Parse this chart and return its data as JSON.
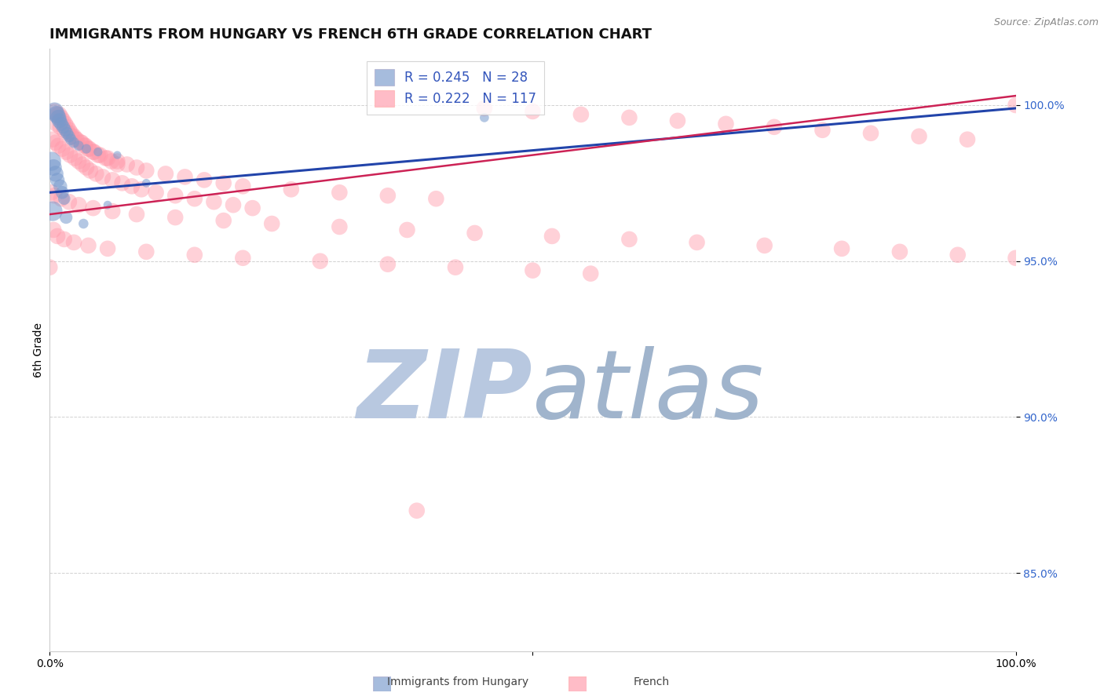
{
  "title": "IMMIGRANTS FROM HUNGARY VS FRENCH 6TH GRADE CORRELATION CHART",
  "source_text": "Source: ZipAtlas.com",
  "ylabel": "6th Grade",
  "xlim": [
    0.0,
    1.0
  ],
  "ylim": [
    0.825,
    1.018
  ],
  "yticks": [
    0.85,
    0.9,
    0.95,
    1.0
  ],
  "ytick_labels": [
    "85.0%",
    "90.0%",
    "95.0%",
    "100.0%"
  ],
  "xticks": [
    0.0,
    0.5,
    1.0
  ],
  "xtick_labels": [
    "0.0%",
    "",
    "100.0%"
  ],
  "blue_R": 0.245,
  "blue_N": 28,
  "pink_R": 0.222,
  "pink_N": 117,
  "legend_label_blue": "Immigrants from Hungary",
  "legend_label_pink": "French",
  "blue_color": "#7799cc",
  "pink_color": "#ff99aa",
  "blue_line_color": "#2244aa",
  "pink_line_color": "#cc2255",
  "watermark_zip_color": "#b8c8e0",
  "watermark_atlas_color": "#a0b4cc",
  "title_fontsize": 13,
  "tick_fontsize": 10,
  "source_fontsize": 9,
  "blue_x": [
    0.005,
    0.007,
    0.009,
    0.01,
    0.012,
    0.014,
    0.016,
    0.018,
    0.02,
    0.022,
    0.025,
    0.03,
    0.038,
    0.05,
    0.07,
    0.002,
    0.004,
    0.006,
    0.008,
    0.011,
    0.013,
    0.015,
    0.06,
    0.1,
    0.45,
    0.003,
    0.017,
    0.035
  ],
  "blue_y": [
    0.998,
    0.997,
    0.996,
    0.995,
    0.994,
    0.993,
    0.992,
    0.991,
    0.99,
    0.989,
    0.988,
    0.987,
    0.986,
    0.985,
    0.984,
    0.982,
    0.98,
    0.978,
    0.976,
    0.974,
    0.972,
    0.97,
    0.968,
    0.975,
    0.996,
    0.966,
    0.964,
    0.962
  ],
  "blue_sizes": [
    500,
    450,
    380,
    350,
    300,
    280,
    260,
    240,
    220,
    200,
    180,
    160,
    140,
    120,
    100,
    550,
    420,
    390,
    320,
    290,
    260,
    230,
    110,
    110,
    130,
    600,
    250,
    150
  ],
  "pink_x_top": [
    0.005,
    0.008,
    0.01,
    0.012,
    0.014,
    0.016,
    0.018,
    0.02,
    0.022,
    0.025,
    0.028,
    0.032,
    0.036,
    0.04,
    0.045,
    0.05,
    0.06,
    0.07,
    0.08,
    0.09,
    0.1,
    0.12,
    0.14,
    0.16,
    0.18,
    0.2,
    0.25,
    0.3,
    0.35,
    0.4,
    0.45,
    0.5,
    0.55,
    0.6,
    0.65,
    0.7,
    0.75,
    0.8,
    0.85,
    0.9,
    0.95,
    1.0,
    0.003,
    0.006,
    0.009,
    0.013,
    0.017,
    0.021,
    0.026,
    0.03,
    0.034,
    0.038,
    0.042,
    0.048,
    0.055,
    0.065,
    0.075,
    0.085,
    0.095,
    0.11,
    0.13,
    0.15,
    0.17,
    0.19,
    0.21,
    0.007,
    0.011,
    0.015,
    0.019,
    0.023,
    0.027,
    0.033,
    0.037,
    0.041,
    0.046,
    0.052,
    0.058,
    0.064,
    0.07
  ],
  "pink_y_top": [
    0.998,
    0.997,
    0.997,
    0.996,
    0.995,
    0.994,
    0.993,
    0.992,
    0.991,
    0.99,
    0.989,
    0.988,
    0.987,
    0.986,
    0.985,
    0.984,
    0.983,
    0.982,
    0.981,
    0.98,
    0.979,
    0.978,
    0.977,
    0.976,
    0.975,
    0.974,
    0.973,
    0.972,
    0.971,
    0.97,
    0.999,
    0.998,
    0.997,
    0.996,
    0.995,
    0.994,
    0.993,
    0.992,
    0.991,
    0.99,
    0.989,
    1.0,
    0.989,
    0.988,
    0.987,
    0.986,
    0.985,
    0.984,
    0.983,
    0.982,
    0.981,
    0.98,
    0.979,
    0.978,
    0.977,
    0.976,
    0.975,
    0.974,
    0.973,
    0.972,
    0.971,
    0.97,
    0.969,
    0.968,
    0.967,
    0.994,
    0.993,
    0.992,
    0.991,
    0.99,
    0.989,
    0.988,
    0.987,
    0.986,
    0.985,
    0.984,
    0.983,
    0.982,
    0.981
  ],
  "pink_x_low": [
    0.004,
    0.008,
    0.015,
    0.025,
    0.04,
    0.06,
    0.1,
    0.15,
    0.2,
    0.28,
    0.35,
    0.42,
    0.5,
    0.56,
    0.002,
    0.005,
    0.012,
    0.02,
    0.03,
    0.045,
    0.065,
    0.09,
    0.13,
    0.18,
    0.23,
    0.3,
    0.37,
    0.44,
    0.52,
    0.6,
    0.67,
    0.74,
    0.82,
    0.88,
    0.94,
    1.0,
    0.0,
    0.38
  ],
  "pink_y_low": [
    0.96,
    0.958,
    0.957,
    0.956,
    0.955,
    0.954,
    0.953,
    0.952,
    0.951,
    0.95,
    0.949,
    0.948,
    0.947,
    0.946,
    0.972,
    0.971,
    0.97,
    0.969,
    0.968,
    0.967,
    0.966,
    0.965,
    0.964,
    0.963,
    0.962,
    0.961,
    0.96,
    0.959,
    0.958,
    0.957,
    0.956,
    0.955,
    0.954,
    0.953,
    0.952,
    0.951,
    0.948,
    0.87
  ],
  "blue_line_x": [
    0.0,
    1.0
  ],
  "blue_line_y": [
    0.972,
    0.999
  ],
  "pink_line_x": [
    0.0,
    1.0
  ],
  "pink_line_y": [
    0.965,
    1.003
  ]
}
